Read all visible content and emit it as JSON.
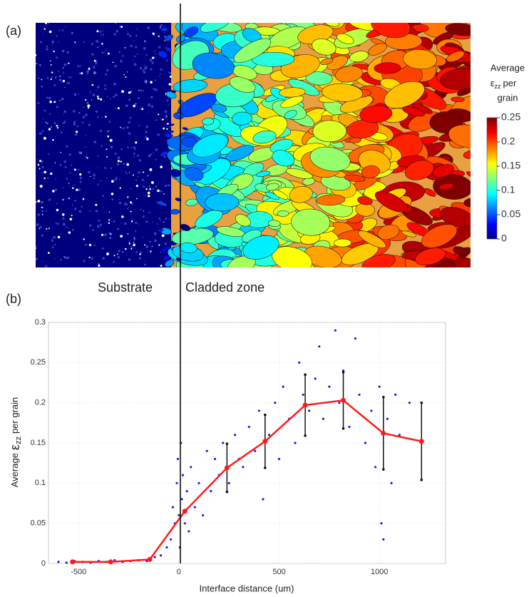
{
  "chart_data": [
    {
      "type": "heatmap",
      "panel_label": "(a)",
      "cbar_label_top": "Average",
      "cbar_symbol": "ε",
      "cbar_subscript": "zz",
      "cbar_tail": "per",
      "cbar_label_bottom": "grain",
      "cbar_lim": [
        0,
        0.25
      ],
      "cbar_ticks": [
        0,
        0.05,
        0.1,
        0.15,
        0.2,
        0.25
      ]
    },
    {
      "type": "line",
      "panel_label": "(b)",
      "annotations": [
        "Substrate",
        "Cladded zone"
      ],
      "xlabel": "Interface distance (um)",
      "ylabel": "Average",
      "ylabel_symbol": "ε",
      "ylabel_subscript": "zz",
      "ylabel_tail": "per grain",
      "xlim": [
        -650,
        1330
      ],
      "xticks": [
        -500,
        0,
        500,
        1000
      ],
      "ylim": [
        0,
        0.3
      ],
      "yticks": [
        0,
        0.05,
        0.1,
        0.15,
        0.2,
        0.25,
        0.3
      ],
      "grid": true,
      "scatter": {
        "color": "#1f1fe0",
        "x": [
          -600,
          -560,
          -520,
          -480,
          -440,
          -400,
          -360,
          -320,
          -280,
          -240,
          -200,
          -160,
          -120,
          -90,
          -60,
          -40,
          -30,
          -20,
          -10,
          -5,
          0,
          5,
          10,
          15,
          20,
          30,
          40,
          50,
          60,
          80,
          100,
          120,
          140,
          160,
          180,
          200,
          220,
          250,
          280,
          300,
          320,
          350,
          380,
          400,
          420,
          450,
          480,
          500,
          520,
          550,
          580,
          600,
          620,
          650,
          680,
          700,
          720,
          750,
          780,
          800,
          820,
          850,
          880,
          900,
          930,
          960,
          980,
          1000,
          1010,
          1020,
          1040,
          1060,
          1080,
          1100,
          1150,
          1210
        ],
        "values": [
          0.002,
          0.001,
          0.003,
          0.002,
          0.001,
          0.003,
          0.002,
          0.004,
          0.002,
          0.003,
          0.004,
          0.003,
          0.008,
          0.01,
          0.02,
          0.03,
          0.07,
          0.05,
          0.1,
          0.13,
          0.06,
          0.02,
          0.15,
          0.08,
          0.11,
          0.05,
          0.09,
          0.04,
          0.12,
          0.07,
          0.1,
          0.06,
          0.14,
          0.09,
          0.13,
          0.11,
          0.15,
          0.1,
          0.16,
          0.13,
          0.12,
          0.17,
          0.14,
          0.19,
          0.08,
          0.16,
          0.2,
          0.13,
          0.22,
          0.18,
          0.15,
          0.25,
          0.21,
          0.19,
          0.23,
          0.27,
          0.18,
          0.22,
          0.29,
          0.2,
          0.24,
          0.17,
          0.28,
          0.21,
          0.15,
          0.19,
          0.12,
          0.22,
          0.05,
          0.03,
          0.18,
          0.1,
          0.21,
          0.16,
          0.2,
          0.15
        ]
      },
      "series": [
        {
          "color": "#ff1a1a",
          "error_color": "#111111",
          "x": [
            -530,
            -340,
            -145,
            30,
            240,
            430,
            630,
            820,
            1020,
            1210
          ],
          "values": [
            0.002,
            0.002,
            0.005,
            0.065,
            0.119,
            0.152,
            0.197,
            0.203,
            0.162,
            0.152
          ],
          "errors": [
            null,
            null,
            null,
            null,
            0.03,
            0.033,
            0.038,
            0.035,
            0.045,
            0.048
          ]
        }
      ]
    }
  ]
}
